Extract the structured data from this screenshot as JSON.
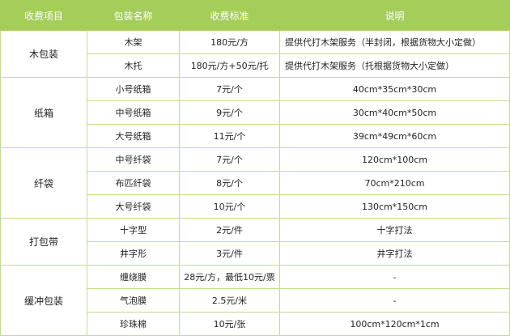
{
  "headers": [
    "收费项目",
    "包装名称",
    "收费标准",
    "说明"
  ],
  "groups": [
    {
      "category": "木包装",
      "rows": [
        {
          "name": "木架",
          "price": "180元/方",
          "note": "提供代打木架服务（半封闭，根据货物大小定做）",
          "align": "left"
        },
        {
          "name": "木托",
          "price": "180元/方+50元/托",
          "note": "提供代打木架服务（托根据货物大小定做）",
          "align": "left"
        }
      ]
    },
    {
      "category": "纸箱",
      "rows": [
        {
          "name": "小号纸箱",
          "price": "7元/个",
          "note": "40cm*35cm*30cm"
        },
        {
          "name": "中号纸箱",
          "price": "9元/个",
          "note": "30cm*40cm*50cm"
        },
        {
          "name": "大号纸箱",
          "price": "11元/个",
          "note": "39cm*49cm*60cm"
        }
      ]
    },
    {
      "category": "纤袋",
      "rows": [
        {
          "name": "中号纤袋",
          "price": "7元/个",
          "note": "120cm*100cm"
        },
        {
          "name": "布匹纤袋",
          "price": "8元/个",
          "note": "70cm*210cm"
        },
        {
          "name": "大号纤袋",
          "price": "10元/个",
          "note": "130cm*150cm"
        }
      ]
    },
    {
      "category": "打包带",
      "rows": [
        {
          "name": "十字型",
          "price": "2元/件",
          "note": "十字打法"
        },
        {
          "name": "井字形",
          "price": "3元/件",
          "note": "井字打法"
        }
      ]
    },
    {
      "category": "缓冲包装",
      "rows": [
        {
          "name": "缠绕膜",
          "price": "28元/方，最低10元/票",
          "note": "-"
        },
        {
          "name": "气泡膜",
          "price": "2.5元/米",
          "note": "-"
        },
        {
          "name": "珍珠棉",
          "price": "10元/张",
          "note": "100cm*120cm*1cm"
        }
      ]
    }
  ],
  "colors": {
    "header": "#a5cd5a",
    "border": "#c2dc8e"
  }
}
